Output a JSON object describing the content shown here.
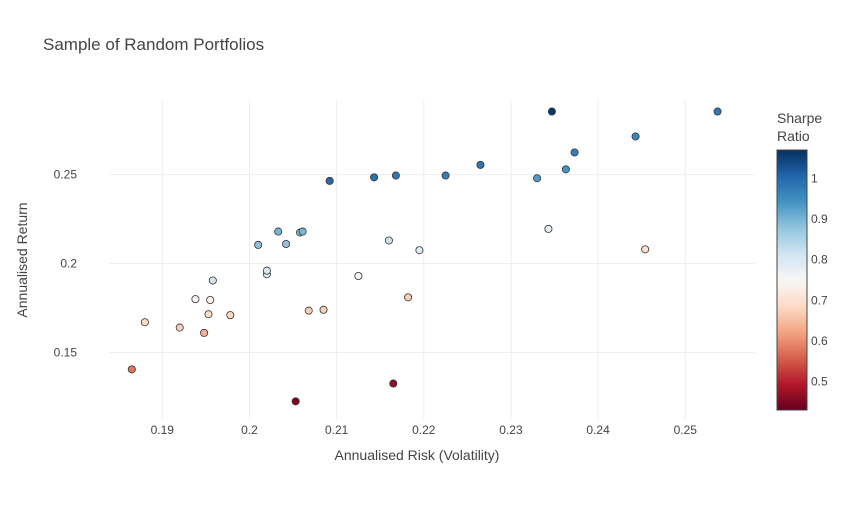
{
  "chart_data": {
    "type": "scatter",
    "title": "Sample of Random Portfolios",
    "xlabel": "Annualised Risk (Volatility)",
    "ylabel": "Annualised Return",
    "xlim": [
      0.184,
      0.258
    ],
    "ylim": [
      0.112,
      0.292
    ],
    "x_ticks": [
      0.19,
      0.2,
      0.21,
      0.22,
      0.23,
      0.24,
      0.25
    ],
    "x_tick_labels": [
      "0.19",
      "0.2",
      "0.21",
      "0.22",
      "0.23",
      "0.24",
      "0.25"
    ],
    "y_ticks": [
      0.15,
      0.2,
      0.25
    ],
    "y_tick_labels": [
      "0.15",
      "0.2",
      "0.25"
    ],
    "grid": true,
    "colorbar": {
      "title_lines": [
        "Sharpe",
        "Ratio"
      ],
      "range": [
        0.43,
        1.07
      ],
      "ticks": [
        0.5,
        0.6,
        0.7,
        0.8,
        0.9,
        1.0
      ],
      "tick_labels": [
        "0.5",
        "0.6",
        "0.7",
        "0.8",
        "0.9",
        "1"
      ],
      "colorscale": [
        "#67001f",
        "#b2182b",
        "#d6604d",
        "#f4a582",
        "#fddbc7",
        "#f7f7f7",
        "#d1e5f0",
        "#92c5de",
        "#4393c3",
        "#2166ac",
        "#053061"
      ]
    },
    "points": [
      {
        "x": 0.1865,
        "y": 0.1405,
        "sharpe": 0.58
      },
      {
        "x": 0.188,
        "y": 0.167,
        "sharpe": 0.69
      },
      {
        "x": 0.192,
        "y": 0.164,
        "sharpe": 0.67
      },
      {
        "x": 0.1938,
        "y": 0.18,
        "sharpe": 0.74
      },
      {
        "x": 0.1948,
        "y": 0.161,
        "sharpe": 0.64
      },
      {
        "x": 0.1953,
        "y": 0.1715,
        "sharpe": 0.69
      },
      {
        "x": 0.1955,
        "y": 0.1795,
        "sharpe": 0.74
      },
      {
        "x": 0.1958,
        "y": 0.1905,
        "sharpe": 0.81
      },
      {
        "x": 0.1978,
        "y": 0.171,
        "sharpe": 0.68
      },
      {
        "x": 0.201,
        "y": 0.2105,
        "sharpe": 0.88
      },
      {
        "x": 0.202,
        "y": 0.194,
        "sharpe": 0.79
      },
      {
        "x": 0.202,
        "y": 0.196,
        "sharpe": 0.8
      },
      {
        "x": 0.2033,
        "y": 0.218,
        "sharpe": 0.9
      },
      {
        "x": 0.2042,
        "y": 0.211,
        "sharpe": 0.88
      },
      {
        "x": 0.2053,
        "y": 0.1225,
        "sharpe": 0.45
      },
      {
        "x": 0.2058,
        "y": 0.2175,
        "sharpe": 0.89
      },
      {
        "x": 0.2061,
        "y": 0.218,
        "sharpe": 0.9
      },
      {
        "x": 0.2068,
        "y": 0.1735,
        "sharpe": 0.67
      },
      {
        "x": 0.2085,
        "y": 0.174,
        "sharpe": 0.67
      },
      {
        "x": 0.2092,
        "y": 0.2465,
        "sharpe": 1.0
      },
      {
        "x": 0.2125,
        "y": 0.193,
        "sharpe": 0.76
      },
      {
        "x": 0.2143,
        "y": 0.2485,
        "sharpe": 0.99
      },
      {
        "x": 0.216,
        "y": 0.213,
        "sharpe": 0.82
      },
      {
        "x": 0.2165,
        "y": 0.1325,
        "sharpe": 0.47
      },
      {
        "x": 0.2168,
        "y": 0.2495,
        "sharpe": 0.98
      },
      {
        "x": 0.2182,
        "y": 0.181,
        "sharpe": 0.67
      },
      {
        "x": 0.2195,
        "y": 0.2075,
        "sharpe": 0.79
      },
      {
        "x": 0.2225,
        "y": 0.2495,
        "sharpe": 0.97
      },
      {
        "x": 0.2265,
        "y": 0.2555,
        "sharpe": 0.98
      },
      {
        "x": 0.233,
        "y": 0.248,
        "sharpe": 0.93
      },
      {
        "x": 0.2343,
        "y": 0.2195,
        "sharpe": 0.78
      },
      {
        "x": 0.2347,
        "y": 0.2855,
        "sharpe": 1.06
      },
      {
        "x": 0.2363,
        "y": 0.253,
        "sharpe": 0.94
      },
      {
        "x": 0.2373,
        "y": 0.2625,
        "sharpe": 0.97
      },
      {
        "x": 0.2443,
        "y": 0.2715,
        "sharpe": 0.96
      },
      {
        "x": 0.2454,
        "y": 0.208,
        "sharpe": 0.7
      },
      {
        "x": 0.2537,
        "y": 0.2855,
        "sharpe": 0.98
      }
    ]
  }
}
